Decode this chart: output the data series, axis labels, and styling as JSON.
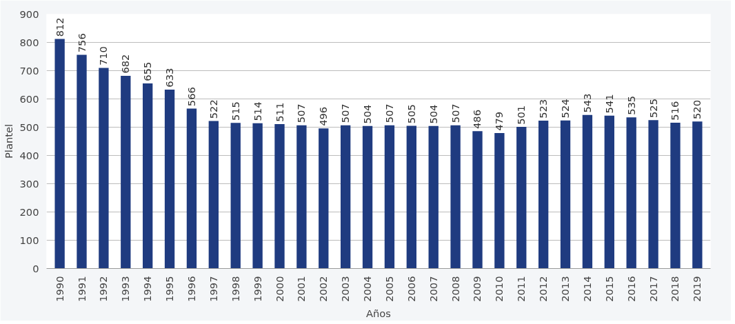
{
  "chart_data": {
    "type": "bar",
    "xlabel": "Años",
    "ylabel": "Plantel",
    "categories": [
      "1990",
      "1991",
      "1992",
      "1993",
      "1994",
      "1995",
      "1996",
      "1997",
      "1998",
      "1999",
      "2000",
      "2001",
      "2002",
      "2003",
      "2004",
      "2005",
      "2006",
      "2007",
      "2008",
      "2009",
      "2010",
      "2011",
      "2012",
      "2013",
      "2014",
      "2015",
      "2016",
      "2017",
      "2018",
      "2019"
    ],
    "values": [
      812,
      756,
      710,
      682,
      655,
      633,
      566,
      522,
      515,
      514,
      511,
      507,
      496,
      507,
      504,
      507,
      505,
      504,
      507,
      486,
      479,
      501,
      523,
      524,
      543,
      541,
      535,
      525,
      516,
      520
    ],
    "color": "#1f3b80",
    "ylim": [
      0,
      900
    ],
    "yticks": [
      0,
      100,
      200,
      300,
      400,
      500,
      600,
      700,
      800,
      900
    ],
    "grid": "y",
    "data_labels": true
  }
}
